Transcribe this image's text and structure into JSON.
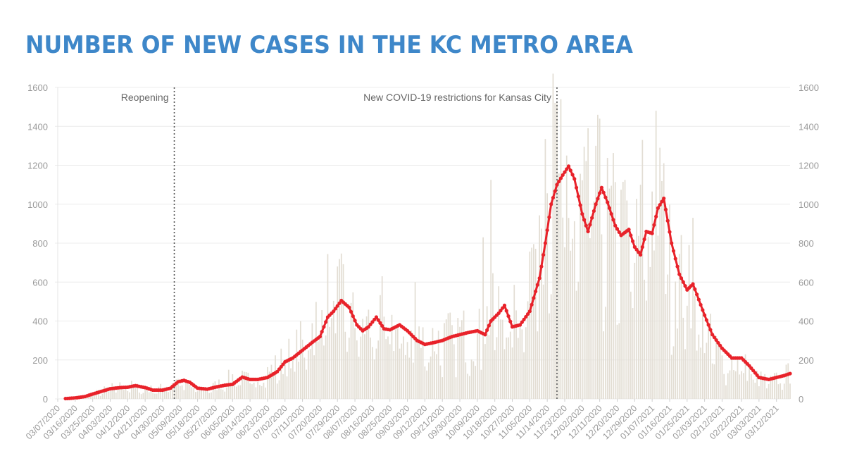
{
  "title": "NUMBER OF NEW CASES IN THE KC METRO AREA",
  "colors": {
    "title": "#3e87c9",
    "bars": "#e2ddd3",
    "line": "#e8222a",
    "grid": "#ececec",
    "annotation_line": "#555555"
  },
  "chart_data": {
    "type": "bar",
    "title": "NUMBER OF NEW CASES IN THE KC METRO AREA",
    "xlabel": "",
    "ylabel": "",
    "ylim": [
      0,
      1600
    ],
    "yticks": [
      0,
      200,
      400,
      600,
      800,
      1000,
      1200,
      1400,
      1600
    ],
    "y_axis_sides": [
      "left",
      "right"
    ],
    "grid": true,
    "x_start": "03/07/2020",
    "x_end": "03/19/2021",
    "xtick_labels": [
      "03/07/2020",
      "03/16/2020",
      "03/25/2020",
      "04/03/2020",
      "04/12/2020",
      "04/21/2020",
      "04/30/2020",
      "05/09/2020",
      "05/18/2020",
      "05/27/2020",
      "06/05/2020",
      "06/14/2020",
      "06/23/2020",
      "07/02/2020",
      "07/11/2020",
      "07/20/2020",
      "07/29/2020",
      "08/07/2020",
      "08/16/2020",
      "08/25/2020",
      "09/03/2020",
      "09/12/2020",
      "09/21/2020",
      "09/30/2020",
      "10/09/2020",
      "10/18/2020",
      "10/27/2020",
      "11/05/2020",
      "11/14/2020",
      "11/23/2020",
      "12/02/2020",
      "12/11/2020",
      "12/20/2020",
      "12/29/2020",
      "01/07/2021",
      "01/16/2021",
      "01/25/2021",
      "02/03/2021",
      "02/12/2021",
      "02/22/2021",
      "03/03/2021",
      "03/12/2021"
    ],
    "series": [
      {
        "series_type": "bar",
        "note": "daily new cases",
        "keypoints": [
          [
            "03/07/2020",
            0
          ],
          [
            "03/16/2020",
            5
          ],
          [
            "03/25/2020",
            25
          ],
          [
            "04/03/2020",
            55
          ],
          [
            "04/12/2020",
            70
          ],
          [
            "04/21/2020",
            45
          ],
          [
            "04/30/2020",
            55
          ],
          [
            "05/07/2020",
            95
          ],
          [
            "05/18/2020",
            45
          ],
          [
            "05/27/2020",
            65
          ],
          [
            "06/05/2020",
            110
          ],
          [
            "06/14/2020",
            95
          ],
          [
            "06/23/2020",
            130
          ],
          [
            "07/02/2020",
            200
          ],
          [
            "07/11/2020",
            280
          ],
          [
            "07/20/2020",
            420
          ],
          [
            "07/27/2020",
            600
          ],
          [
            "08/04/2020",
            400
          ],
          [
            "08/11/2020",
            380
          ],
          [
            "08/18/2020",
            350
          ],
          [
            "08/25/2020",
            380
          ],
          [
            "09/03/2020",
            300
          ],
          [
            "09/12/2020",
            290
          ],
          [
            "09/21/2020",
            300
          ],
          [
            "09/30/2020",
            330
          ],
          [
            "10/09/2020",
            300
          ],
          [
            "10/15/2020",
            420
          ],
          [
            "10/20/2020",
            450
          ],
          [
            "10/27/2020",
            380
          ],
          [
            "11/05/2020",
            650
          ],
          [
            "11/10/2020",
            1000
          ],
          [
            "11/15/2020",
            1150
          ],
          [
            "11/20/2020",
            1200
          ],
          [
            "11/25/2020",
            850
          ],
          [
            "12/02/2020",
            950
          ],
          [
            "12/08/2020",
            1050
          ],
          [
            "12/14/2020",
            900
          ],
          [
            "12/20/2020",
            850
          ],
          [
            "12/29/2020",
            720
          ],
          [
            "01/05/2021",
            900
          ],
          [
            "01/10/2021",
            1050
          ],
          [
            "01/16/2021",
            700
          ],
          [
            "01/25/2021",
            550
          ],
          [
            "02/03/2021",
            350
          ],
          [
            "02/12/2021",
            200
          ],
          [
            "02/22/2021",
            180
          ],
          [
            "03/03/2021",
            100
          ],
          [
            "03/10/2021",
            90
          ],
          [
            "03/19/2021",
            130
          ]
        ],
        "spikes": [
          [
            "10/12/2020",
            830
          ],
          [
            "10/16/2020",
            1125
          ],
          [
            "11/13/2020",
            1335
          ],
          [
            "11/24/2020",
            1250
          ],
          [
            "12/03/2020",
            1295
          ],
          [
            "12/09/2020",
            1300
          ],
          [
            "12/23/2020",
            1115
          ],
          [
            "01/02/2021",
            1330
          ],
          [
            "01/09/2021",
            1480
          ],
          [
            "01/11/2021",
            1290
          ],
          [
            "01/28/2021",
            930
          ],
          [
            "01/26/2021",
            790
          ],
          [
            "07/29/2020",
            680
          ],
          [
            "08/21/2020",
            630
          ],
          [
            "09/07/2020",
            600
          ]
        ]
      },
      {
        "series_type": "line",
        "note": "7-day average",
        "points": [
          [
            "03/07/2020",
            0
          ],
          [
            "03/12/2020",
            2
          ],
          [
            "03/16/2020",
            5
          ],
          [
            "03/21/2020",
            12
          ],
          [
            "03/25/2020",
            25
          ],
          [
            "03/30/2020",
            40
          ],
          [
            "04/03/2020",
            52
          ],
          [
            "04/08/2020",
            58
          ],
          [
            "04/12/2020",
            60
          ],
          [
            "04/16/2020",
            68
          ],
          [
            "04/21/2020",
            58
          ],
          [
            "04/25/2020",
            45
          ],
          [
            "04/30/2020",
            45
          ],
          [
            "05/04/2020",
            55
          ],
          [
            "05/08/2020",
            88
          ],
          [
            "05/11/2020",
            95
          ],
          [
            "05/14/2020",
            85
          ],
          [
            "05/18/2020",
            55
          ],
          [
            "05/23/2020",
            50
          ],
          [
            "05/27/2020",
            60
          ],
          [
            "06/01/2020",
            70
          ],
          [
            "06/05/2020",
            75
          ],
          [
            "06/10/2020",
            112
          ],
          [
            "06/14/2020",
            100
          ],
          [
            "06/18/2020",
            100
          ],
          [
            "06/23/2020",
            110
          ],
          [
            "06/28/2020",
            140
          ],
          [
            "07/02/2020",
            190
          ],
          [
            "07/06/2020",
            210
          ],
          [
            "07/11/2020",
            250
          ],
          [
            "07/16/2020",
            290
          ],
          [
            "07/20/2020",
            320
          ],
          [
            "07/24/2020",
            420
          ],
          [
            "07/27/2020",
            450
          ],
          [
            "07/31/2020",
            505
          ],
          [
            "08/04/2020",
            470
          ],
          [
            "08/08/2020",
            380
          ],
          [
            "08/11/2020",
            350
          ],
          [
            "08/14/2020",
            370
          ],
          [
            "08/18/2020",
            420
          ],
          [
            "08/22/2020",
            360
          ],
          [
            "08/25/2020",
            355
          ],
          [
            "08/30/2020",
            380
          ],
          [
            "09/03/2020",
            350
          ],
          [
            "09/08/2020",
            300
          ],
          [
            "09/12/2020",
            280
          ],
          [
            "09/17/2020",
            290
          ],
          [
            "09/21/2020",
            300
          ],
          [
            "09/26/2020",
            320
          ],
          [
            "09/30/2020",
            330
          ],
          [
            "10/04/2020",
            340
          ],
          [
            "10/09/2020",
            350
          ],
          [
            "10/13/2020",
            330
          ],
          [
            "10/16/2020",
            400
          ],
          [
            "10/20/2020",
            440
          ],
          [
            "10/23/2020",
            480
          ],
          [
            "10/27/2020",
            370
          ],
          [
            "10/31/2020",
            380
          ],
          [
            "11/05/2020",
            450
          ],
          [
            "11/10/2020",
            620
          ],
          [
            "11/13/2020",
            800
          ],
          [
            "11/16/2020",
            1000
          ],
          [
            "11/19/2020",
            1100
          ],
          [
            "11/22/2020",
            1150
          ],
          [
            "11/25/2020",
            1195
          ],
          [
            "11/28/2020",
            1130
          ],
          [
            "12/02/2020",
            950
          ],
          [
            "12/05/2020",
            860
          ],
          [
            "12/09/2020",
            1000
          ],
          [
            "12/12/2020",
            1085
          ],
          [
            "12/15/2020",
            1010
          ],
          [
            "12/19/2020",
            890
          ],
          [
            "12/22/2020",
            840
          ],
          [
            "12/26/2020",
            870
          ],
          [
            "12/29/2020",
            780
          ],
          [
            "01/01/2021",
            740
          ],
          [
            "01/04/2021",
            860
          ],
          [
            "01/07/2021",
            850
          ],
          [
            "01/10/2021",
            980
          ],
          [
            "01/13/2021",
            1030
          ],
          [
            "01/17/2021",
            800
          ],
          [
            "01/21/2021",
            640
          ],
          [
            "01/25/2021",
            560
          ],
          [
            "01/28/2021",
            590
          ],
          [
            "01/31/2021",
            510
          ],
          [
            "02/03/2021",
            430
          ],
          [
            "02/07/2021",
            330
          ],
          [
            "02/12/2021",
            260
          ],
          [
            "02/17/2021",
            210
          ],
          [
            "02/22/2021",
            210
          ],
          [
            "02/26/2021",
            170
          ],
          [
            "03/03/2021",
            110
          ],
          [
            "03/08/2021",
            100
          ],
          [
            "03/12/2021",
            110
          ],
          [
            "03/16/2021",
            120
          ],
          [
            "03/19/2021",
            130
          ]
        ]
      }
    ],
    "annotations": [
      {
        "label": "Reopening",
        "x": "05/06/2020"
      },
      {
        "label": "New COVID-19 restrictions for Kansas City",
        "x": "11/19/2020"
      }
    ]
  }
}
